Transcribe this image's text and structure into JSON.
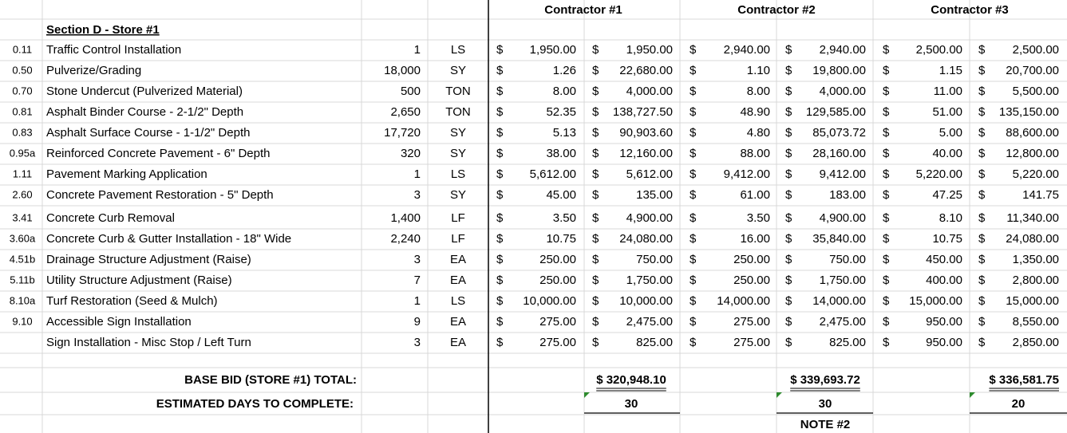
{
  "header": {
    "contractors": [
      "Contractor #1",
      "Contractor #2",
      "Contractor #3"
    ]
  },
  "section_title": "Section D - Store #1",
  "currency": "$",
  "rows": [
    {
      "code": "0.11",
      "item": "Traffic Control Installation",
      "qty": "1",
      "unit": "LS",
      "bids": [
        [
          "1,950.00",
          "1,950.00"
        ],
        [
          "2,940.00",
          "2,940.00"
        ],
        [
          "2,500.00",
          "2,500.00"
        ]
      ]
    },
    {
      "code": "0.50",
      "item": "Pulverize/Grading",
      "qty": "18,000",
      "unit": "SY",
      "bids": [
        [
          "1.26",
          "22,680.00"
        ],
        [
          "1.10",
          "19,800.00"
        ],
        [
          "1.15",
          "20,700.00"
        ]
      ]
    },
    {
      "code": "0.70",
      "item": "Stone Undercut (Pulverized Material)",
      "qty": "500",
      "unit": "TON",
      "bids": [
        [
          "8.00",
          "4,000.00"
        ],
        [
          "8.00",
          "4,000.00"
        ],
        [
          "11.00",
          "5,500.00"
        ]
      ]
    },
    {
      "code": "0.81",
      "item": "Asphalt Binder Course - 2-1/2\" Depth",
      "qty": "2,650",
      "unit": "TON",
      "bids": [
        [
          "52.35",
          "138,727.50"
        ],
        [
          "48.90",
          "129,585.00"
        ],
        [
          "51.00",
          "135,150.00"
        ]
      ]
    },
    {
      "code": "0.83",
      "item": "Asphalt Surface Course - 1-1/2\" Depth",
      "qty": "17,720",
      "unit": "SY",
      "bids": [
        [
          "5.13",
          "90,903.60"
        ],
        [
          "4.80",
          "85,073.72"
        ],
        [
          "5.00",
          "88,600.00"
        ]
      ]
    },
    {
      "code": "0.95a",
      "item": "Reinforced Concrete Pavement - 6\" Depth",
      "qty": "320",
      "unit": "SY",
      "bids": [
        [
          "38.00",
          "12,160.00"
        ],
        [
          "88.00",
          "28,160.00"
        ],
        [
          "40.00",
          "12,800.00"
        ]
      ]
    },
    {
      "code": "1.11",
      "item": "Pavement Marking Application",
      "qty": "1",
      "unit": "LS",
      "bids": [
        [
          "5,612.00",
          "5,612.00"
        ],
        [
          "9,412.00",
          "9,412.00"
        ],
        [
          "5,220.00",
          "5,220.00"
        ]
      ]
    },
    {
      "code": "2.60",
      "item": "Concrete Pavement Restoration - 5\" Depth",
      "qty": "3",
      "unit": "SY",
      "bids": [
        [
          "45.00",
          "135.00"
        ],
        [
          "61.00",
          "183.00"
        ],
        [
          "47.25",
          "141.75"
        ]
      ]
    },
    {
      "code": "3.41",
      "item": "Concrete Curb Removal",
      "qty": "1,400",
      "unit": "LF",
      "bids": [
        [
          "3.50",
          "4,900.00"
        ],
        [
          "3.50",
          "4,900.00"
        ],
        [
          "8.10",
          "11,340.00"
        ]
      ]
    },
    {
      "code": "3.60a",
      "item": "Concrete Curb & Gutter Installation - 18\" Wide",
      "qty": "2,240",
      "unit": "LF",
      "bids": [
        [
          "10.75",
          "24,080.00"
        ],
        [
          "16.00",
          "35,840.00"
        ],
        [
          "10.75",
          "24,080.00"
        ]
      ]
    },
    {
      "code": "4.51b",
      "item": "Drainage Structure Adjustment (Raise)",
      "qty": "3",
      "unit": "EA",
      "bids": [
        [
          "250.00",
          "750.00"
        ],
        [
          "250.00",
          "750.00"
        ],
        [
          "450.00",
          "1,350.00"
        ]
      ]
    },
    {
      "code": "5.11b",
      "item": "Utility Structure Adjustment (Raise)",
      "qty": "7",
      "unit": "EA",
      "bids": [
        [
          "250.00",
          "1,750.00"
        ],
        [
          "250.00",
          "1,750.00"
        ],
        [
          "400.00",
          "2,800.00"
        ]
      ]
    },
    {
      "code": "8.10a",
      "item": "Turf Restoration (Seed & Mulch)",
      "qty": "1",
      "unit": "LS",
      "bids": [
        [
          "10,000.00",
          "10,000.00"
        ],
        [
          "14,000.00",
          "14,000.00"
        ],
        [
          "15,000.00",
          "15,000.00"
        ]
      ]
    },
    {
      "code": "9.10",
      "item": "Accessible Sign Installation",
      "qty": "9",
      "unit": "EA",
      "bids": [
        [
          "275.00",
          "2,475.00"
        ],
        [
          "275.00",
          "2,475.00"
        ],
        [
          "950.00",
          "8,550.00"
        ]
      ]
    },
    {
      "item": "Sign Installation - Misc Stop / Left Turn",
      "qty": "3",
      "unit": "EA",
      "bids": [
        [
          "275.00",
          "825.00"
        ],
        [
          "275.00",
          "825.00"
        ],
        [
          "950.00",
          "2,850.00"
        ]
      ]
    }
  ],
  "totals": {
    "label": "BASE BID (STORE #1) TOTAL:",
    "values": [
      "$ 320,948.10",
      "$ 339,693.72",
      "$ 336,581.75"
    ]
  },
  "days": {
    "label": "ESTIMATED DAYS TO COMPLETE:",
    "values": [
      "30",
      "30",
      "20"
    ]
  },
  "note": "NOTE #2"
}
